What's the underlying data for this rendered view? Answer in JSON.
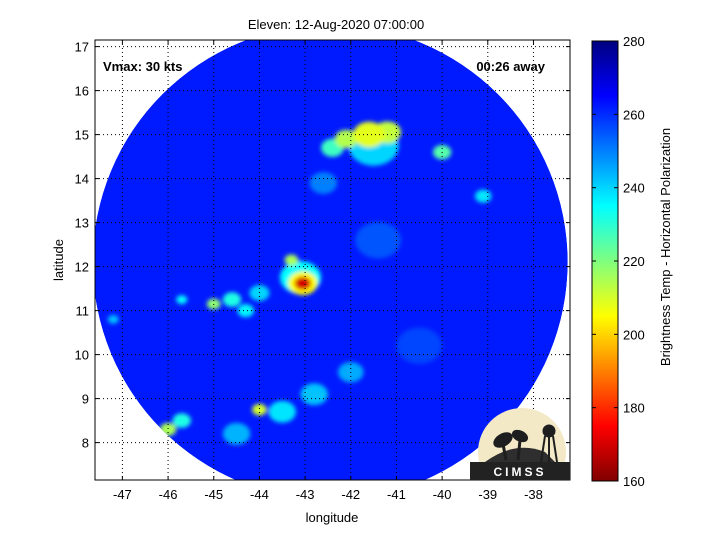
{
  "chart_data": {
    "type": "heatmap",
    "title": "Eleven: 12-Aug-2020 07:00:00",
    "xlabel": "longitude",
    "ylabel": "latitude",
    "xlim": [
      -47.6,
      -37.2
    ],
    "ylim": [
      7.15,
      17.15
    ],
    "xticks": [
      -47,
      -46,
      -45,
      -44,
      -43,
      -42,
      -41,
      -40,
      -39,
      -38
    ],
    "yticks": [
      8,
      9,
      10,
      11,
      12,
      13,
      14,
      15,
      16,
      17
    ],
    "grid": true,
    "swath": {
      "center_lon": -42.45,
      "center_lat": 12.1,
      "radius_deg": 5.2
    },
    "colorbar": {
      "label": "Brightness Temp - Horizontal Polarization",
      "min": 160,
      "max": 280,
      "ticks": [
        160,
        180,
        200,
        220,
        240,
        260,
        280
      ],
      "colormap": "jet"
    },
    "background_value": 262,
    "features": [
      {
        "lon": -43.05,
        "lat": 11.62,
        "value": 170,
        "size": 0.18
      },
      {
        "lon": -43.05,
        "lat": 11.62,
        "value": 205,
        "size": 0.32
      },
      {
        "lon": -43.1,
        "lat": 11.75,
        "value": 235,
        "size": 0.45
      },
      {
        "lon": -43.3,
        "lat": 12.15,
        "value": 215,
        "size": 0.15
      },
      {
        "lon": -41.6,
        "lat": 15.0,
        "value": 208,
        "size": 0.35
      },
      {
        "lon": -41.2,
        "lat": 15.05,
        "value": 212,
        "size": 0.3
      },
      {
        "lon": -42.1,
        "lat": 14.9,
        "value": 214,
        "size": 0.25
      },
      {
        "lon": -42.4,
        "lat": 14.7,
        "value": 228,
        "size": 0.25
      },
      {
        "lon": -41.5,
        "lat": 14.75,
        "value": 240,
        "size": 0.55
      },
      {
        "lon": -40.0,
        "lat": 14.6,
        "value": 225,
        "size": 0.2
      },
      {
        "lon": -39.1,
        "lat": 13.6,
        "value": 238,
        "size": 0.18
      },
      {
        "lon": -45.0,
        "lat": 11.15,
        "value": 218,
        "size": 0.15
      },
      {
        "lon": -44.6,
        "lat": 11.25,
        "value": 232,
        "size": 0.2
      },
      {
        "lon": -44.3,
        "lat": 11.0,
        "value": 236,
        "size": 0.18
      },
      {
        "lon": -44.0,
        "lat": 11.4,
        "value": 240,
        "size": 0.22
      },
      {
        "lon": -45.7,
        "lat": 11.25,
        "value": 235,
        "size": 0.12
      },
      {
        "lon": -47.2,
        "lat": 10.8,
        "value": 242,
        "size": 0.12
      },
      {
        "lon": -46.0,
        "lat": 8.3,
        "value": 215,
        "size": 0.18
      },
      {
        "lon": -45.7,
        "lat": 8.5,
        "value": 232,
        "size": 0.2
      },
      {
        "lon": -44.0,
        "lat": 8.75,
        "value": 210,
        "size": 0.16
      },
      {
        "lon": -43.5,
        "lat": 8.7,
        "value": 238,
        "size": 0.3
      },
      {
        "lon": -42.8,
        "lat": 9.1,
        "value": 242,
        "size": 0.3
      },
      {
        "lon": -42.0,
        "lat": 9.6,
        "value": 245,
        "size": 0.28
      },
      {
        "lon": -44.5,
        "lat": 8.2,
        "value": 244,
        "size": 0.3
      },
      {
        "lon": -41.4,
        "lat": 12.6,
        "value": 255,
        "size": 0.5
      },
      {
        "lon": -42.6,
        "lat": 13.9,
        "value": 250,
        "size": 0.3
      },
      {
        "lon": -40.5,
        "lat": 10.2,
        "value": 257,
        "size": 0.5
      }
    ],
    "annotations": [
      {
        "text": "Vmax: 30 kts",
        "position": "top-left"
      },
      {
        "text": "00:26 away",
        "position": "top-right"
      }
    ]
  },
  "logo": {
    "text": "CIMSS"
  }
}
